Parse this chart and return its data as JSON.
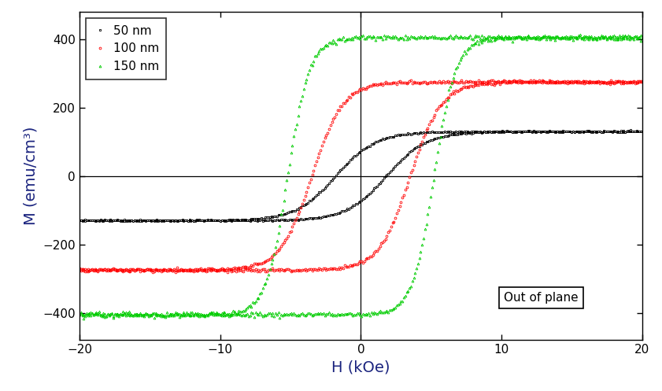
{
  "xlabel": "H (kOe)",
  "ylabel": "M (emu/cm³)",
  "xlim": [
    -20,
    20
  ],
  "ylim": [
    -480,
    480
  ],
  "xticks": [
    -20,
    -10,
    0,
    10,
    20
  ],
  "yticks": [
    -400,
    -200,
    0,
    200,
    400
  ],
  "annotation": "Out of plane",
  "axis_label_color": "#1a237e",
  "series": [
    {
      "label": "50 nm",
      "color": "black",
      "marker": "s",
      "Ms": 130,
      "Hc": 1.8,
      "k": 0.35
    },
    {
      "label": "100 nm",
      "color": "red",
      "marker": "o",
      "Ms": 275,
      "Hc": 3.5,
      "k": 0.45
    },
    {
      "label": "150 nm",
      "color": "#00cc00",
      "marker": "^",
      "Ms": 405,
      "Hc": 5.2,
      "k": 0.65
    }
  ],
  "figsize": [
    8.41,
    4.97
  ],
  "dpi": 100
}
